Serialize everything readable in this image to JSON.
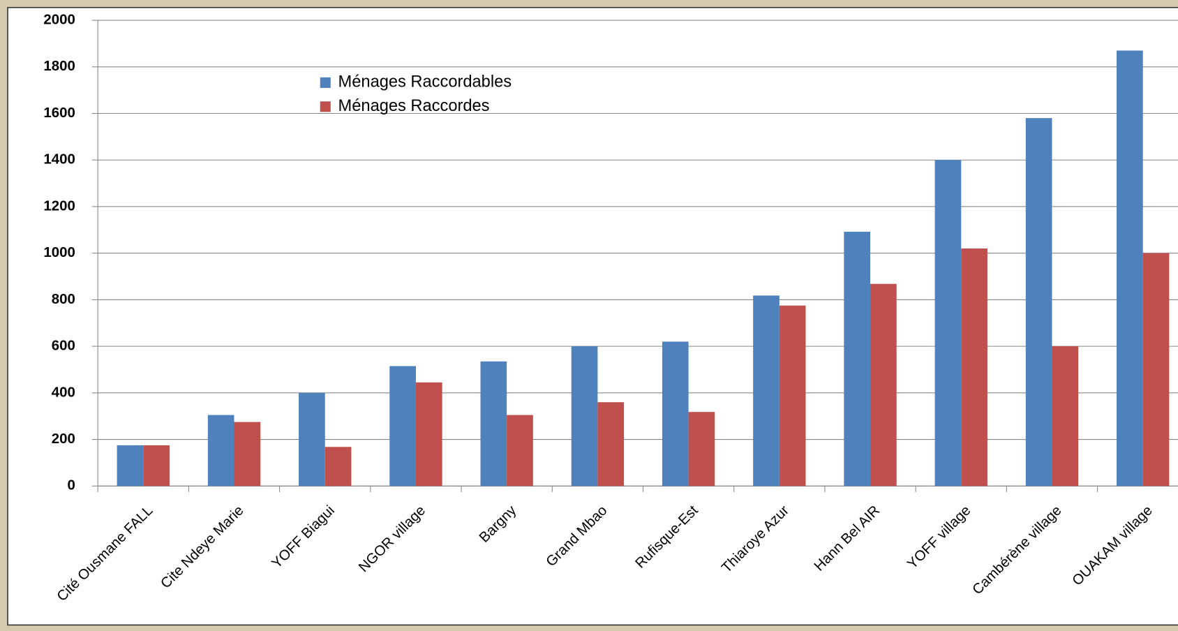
{
  "chart_data": {
    "type": "bar",
    "categories": [
      "Cité Ousmane FALL",
      "Cite Ndeye Marie",
      "YOFF Biagui",
      "NGOR village",
      "Bargny",
      "Grand Mbao",
      "Rufisque-Est",
      "Thiaroye Azur",
      "Hann Bel AIR",
      "YOFF village",
      "Cambérène village",
      "OUAKAM village"
    ],
    "series": [
      {
        "name": "Ménages Raccordables",
        "color": "#4f81bd",
        "values": [
          175,
          305,
          400,
          515,
          535,
          600,
          620,
          818,
          1092,
          1400,
          1580,
          1870
        ]
      },
      {
        "name": "Ménages Raccordes",
        "color": "#c0504d",
        "values": [
          175,
          275,
          168,
          445,
          305,
          360,
          318,
          775,
          868,
          1020,
          600,
          1000
        ]
      }
    ],
    "ylim": [
      0,
      2000
    ],
    "yticks": [
      0,
      200,
      400,
      600,
      800,
      1000,
      1200,
      1400,
      1600,
      1800,
      2000
    ],
    "grid": true
  }
}
